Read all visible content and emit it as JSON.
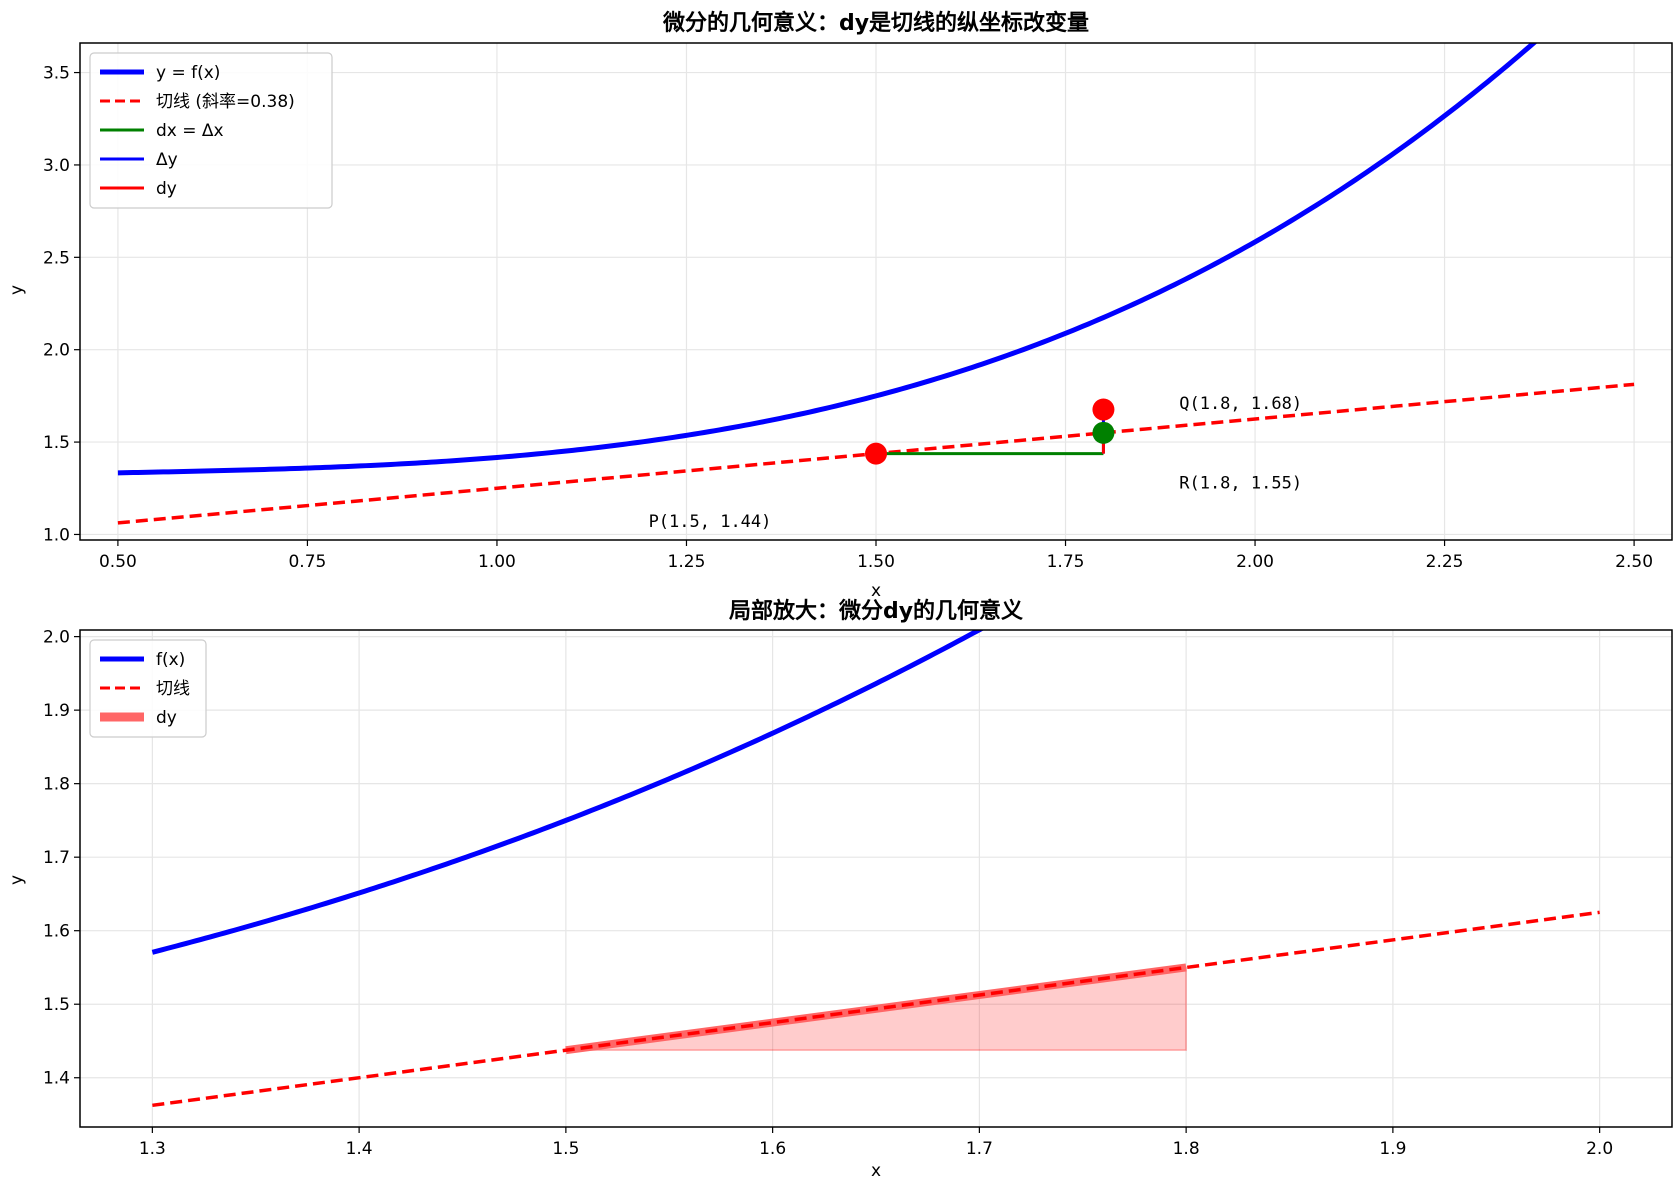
{
  "chart_data": [
    {
      "type": "line",
      "title": "微分的几何意义：dy是切线的纵坐标改变量",
      "xlabel": "x",
      "ylabel": "y",
      "xlim": [
        0.45,
        2.55
      ],
      "ylim": [
        0.97,
        3.66
      ],
      "xticks": [
        0.5,
        0.75,
        1.0,
        1.25,
        1.5,
        1.75,
        2.0,
        2.25,
        2.5
      ],
      "xtick_labels": [
        "0.50",
        "0.75",
        "1.00",
        "1.25",
        "1.50",
        "1.75",
        "2.00",
        "2.25",
        "2.50"
      ],
      "yticks": [
        1.0,
        1.5,
        2.0,
        2.5,
        3.0,
        3.5
      ],
      "ytick_labels": [
        "1.0",
        "1.5",
        "2.0",
        "2.5",
        "3.0",
        "3.5"
      ],
      "grid": true,
      "legend_position": "upper-left",
      "function": {
        "expression": "x^3/3 - x^2/2 + x/3 + 1.25",
        "x_range": [
          0.5,
          2.5
        ]
      },
      "tangent": {
        "x0": 1.5,
        "y0": 1.4375,
        "slope": 0.375,
        "x_range": [
          0.5,
          2.5
        ]
      },
      "series": [
        {
          "name": "y = f(x)",
          "color": "#0000ff",
          "style": "solid"
        },
        {
          "name": "切线 (斜率=0.38)",
          "color": "#ff0000",
          "style": "dashed"
        },
        {
          "name": "dx = Δx",
          "color": "#008000",
          "style": "solid",
          "from": [
            1.5,
            1.4375
          ],
          "to": [
            1.8,
            1.4375
          ]
        },
        {
          "name": "Δy",
          "color": "#0000ff",
          "style": "solid",
          "from": [
            1.8,
            1.4375
          ],
          "to": [
            1.8,
            1.676
          ]
        },
        {
          "name": "dy",
          "color": "#ff0000",
          "style": "solid",
          "from": [
            1.8,
            1.4375
          ],
          "to": [
            1.8,
            1.55
          ]
        }
      ],
      "points": [
        {
          "x": 1.5,
          "y": 1.4375,
          "color": "#ff0000"
        },
        {
          "x": 1.8,
          "y": 1.676,
          "color": "#ff0000"
        },
        {
          "x": 1.8,
          "y": 1.55,
          "color": "#008000"
        }
      ],
      "annotations": [
        {
          "text": "P(1.5, 1.44)",
          "x": 1.2,
          "y": 1.04
        },
        {
          "text": "Q(1.8, 1.68)",
          "x": 1.9,
          "y": 1.68
        },
        {
          "text": "R(1.8, 1.55)",
          "x": 1.9,
          "y": 1.25
        }
      ]
    },
    {
      "type": "line",
      "title": "局部放大：微分dy的几何意义",
      "xlabel": "x",
      "ylabel": "y",
      "xlim": [
        1.265,
        2.035
      ],
      "ylim": [
        1.333,
        2.009
      ],
      "xticks": [
        1.3,
        1.4,
        1.5,
        1.6,
        1.7,
        1.8,
        1.9,
        2.0
      ],
      "xtick_labels": [
        "1.3",
        "1.4",
        "1.5",
        "1.6",
        "1.7",
        "1.8",
        "1.9",
        "2.0"
      ],
      "yticks": [
        1.4,
        1.5,
        1.6,
        1.7,
        1.8,
        1.9,
        2.0
      ],
      "ytick_labels": [
        "1.4",
        "1.5",
        "1.6",
        "1.7",
        "1.8",
        "1.9",
        "2.0"
      ],
      "grid": true,
      "legend_position": "upper-left",
      "function": {
        "expression": "x^3/3 - x^2/2 + x/3 + 1.25",
        "x_range": [
          1.3,
          2.0
        ]
      },
      "tangent": {
        "x0": 1.5,
        "y0": 1.4375,
        "slope": 0.375,
        "x_range": [
          1.3,
          2.0
        ]
      },
      "series": [
        {
          "name": "f(x)",
          "color": "#0000ff",
          "style": "solid"
        },
        {
          "name": "切线",
          "color": "#ff0000",
          "style": "dashed"
        },
        {
          "name": "dy",
          "color": "#ff6666",
          "style": "fill",
          "x_range": [
            1.5,
            1.8
          ],
          "baseline": 1.4375
        }
      ]
    }
  ]
}
